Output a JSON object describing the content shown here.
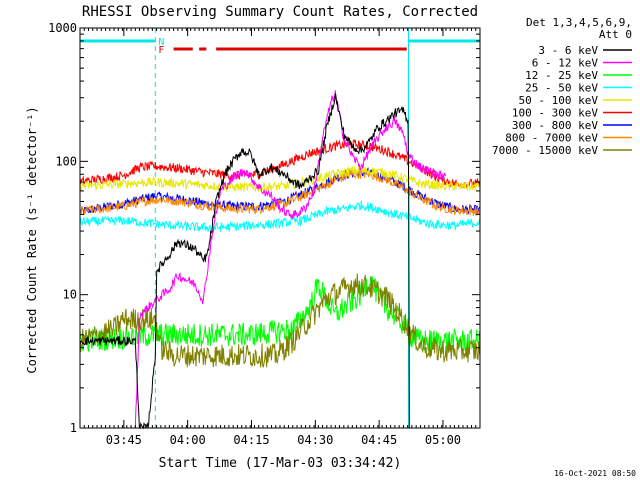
{
  "chart_data": {
    "type": "line",
    "title": "RHESSI Observing Summary Count Rates, Corrected",
    "ylabel": "Corrected Count Rate (s⁻¹ detector⁻¹)",
    "xlabel": "Start Time (17-Mar-03 03:34:42)",
    "y_scale": "log",
    "ylim": [
      1,
      1000
    ],
    "y_ticks": [
      1,
      10,
      100,
      1000
    ],
    "y_tick_labels": [
      "1",
      "10",
      "100",
      "1000"
    ],
    "x_unit": "minutes after 03:34:42",
    "xlim": [
      0,
      94
    ],
    "x_ticks": [
      10.3,
      25.3,
      40.3,
      55.3,
      70.3,
      85.3
    ],
    "x_tick_labels": [
      "03:45",
      "04:00",
      "04:15",
      "04:30",
      "04:45",
      "05:00"
    ],
    "grid": false,
    "legend_position": "right",
    "legend_header": [
      "Det 1,3,4,5,6,9,",
      "Att 0"
    ],
    "timestamp": "16-Oct-2021 08:50",
    "flags": [
      {
        "label": "N",
        "color": "#00e8e8",
        "segments": [
          [
            0,
            17.7
          ],
          [
            77.2,
            94
          ]
        ]
      },
      {
        "label": "F",
        "color": "#e00000",
        "segments": [
          [
            22,
            26.5
          ],
          [
            28,
            29.7
          ],
          [
            32,
            76.8
          ]
        ]
      }
    ],
    "vlines": [
      0,
      17.7,
      77.2,
      94
    ],
    "series": [
      {
        "name": "3 - 6 keV",
        "color": "#000000",
        "points": [
          [
            0,
            4.5
          ],
          [
            13,
            4.5
          ],
          [
            14,
            1
          ],
          [
            16,
            1
          ],
          [
            17.7,
            3.5
          ],
          [
            18,
            15
          ],
          [
            21,
            20
          ],
          [
            23,
            25
          ],
          [
            27,
            22
          ],
          [
            29,
            18
          ],
          [
            30,
            20
          ],
          [
            32,
            50
          ],
          [
            34,
            80
          ],
          [
            36,
            100
          ],
          [
            38,
            120
          ],
          [
            40,
            115
          ],
          [
            42,
            80
          ],
          [
            45,
            90
          ],
          [
            48,
            80
          ],
          [
            50,
            70
          ],
          [
            52,
            65
          ],
          [
            54,
            75
          ],
          [
            56,
            85
          ],
          [
            58,
            180
          ],
          [
            60,
            310
          ],
          [
            62,
            160
          ],
          [
            64,
            130
          ],
          [
            66,
            120
          ],
          [
            68,
            140
          ],
          [
            70,
            180
          ],
          [
            72,
            200
          ],
          [
            74,
            230
          ],
          [
            76,
            240
          ],
          [
            77.2,
            200
          ],
          [
            77.4,
            1
          ]
        ]
      },
      {
        "name": "6 - 12 keV",
        "color": "#ff00ff",
        "points": [
          [
            13,
            1
          ],
          [
            14,
            7
          ],
          [
            17.7,
            9
          ],
          [
            21,
            11
          ],
          [
            23,
            14
          ],
          [
            27,
            12
          ],
          [
            29,
            9
          ],
          [
            31,
            28
          ],
          [
            33,
            60
          ],
          [
            35,
            70
          ],
          [
            37,
            80
          ],
          [
            39,
            85
          ],
          [
            41,
            70
          ],
          [
            43,
            60
          ],
          [
            45,
            55
          ],
          [
            47,
            45
          ],
          [
            49,
            40
          ],
          [
            51,
            40
          ],
          [
            53,
            45
          ],
          [
            55,
            60
          ],
          [
            57,
            150
          ],
          [
            59,
            280
          ],
          [
            60,
            320
          ],
          [
            62,
            150
          ],
          [
            64,
            110
          ],
          [
            66,
            90
          ],
          [
            68,
            120
          ],
          [
            70,
            150
          ],
          [
            72,
            180
          ],
          [
            74,
            200
          ],
          [
            76,
            160
          ],
          [
            77.2,
            110
          ],
          [
            80,
            90
          ],
          [
            84,
            80
          ],
          [
            86,
            75
          ]
        ]
      },
      {
        "name": "12 - 25 keV",
        "color": "#00ff00",
        "points": [
          [
            0,
            4.5
          ],
          [
            17.7,
            5
          ],
          [
            25,
            5
          ],
          [
            40,
            5
          ],
          [
            50,
            5.5
          ],
          [
            54,
            8
          ],
          [
            56,
            12
          ],
          [
            58,
            9
          ],
          [
            60,
            7
          ],
          [
            62,
            8
          ],
          [
            66,
            10
          ],
          [
            68,
            13
          ],
          [
            70,
            10
          ],
          [
            72,
            8
          ],
          [
            74,
            7
          ],
          [
            76,
            6
          ],
          [
            77.2,
            5
          ],
          [
            80,
            4.5
          ],
          [
            94,
            4.5
          ]
        ]
      },
      {
        "name": "25 - 50 keV",
        "color": "#00ffff",
        "points": [
          [
            0,
            35
          ],
          [
            10,
            36
          ],
          [
            17.7,
            34
          ],
          [
            22,
            33
          ],
          [
            28,
            32
          ],
          [
            34,
            32
          ],
          [
            40,
            33
          ],
          [
            46,
            34
          ],
          [
            52,
            36
          ],
          [
            58,
            42
          ],
          [
            62,
            44
          ],
          [
            66,
            47
          ],
          [
            70,
            44
          ],
          [
            74,
            40
          ],
          [
            77.2,
            38
          ],
          [
            82,
            34
          ],
          [
            88,
            33
          ],
          [
            94,
            35
          ]
        ]
      },
      {
        "name": "50 - 100 keV",
        "color": "#e8e800",
        "points": [
          [
            0,
            65
          ],
          [
            10,
            68
          ],
          [
            17.7,
            70
          ],
          [
            24,
            68
          ],
          [
            30,
            66
          ],
          [
            36,
            64
          ],
          [
            42,
            64
          ],
          [
            48,
            65
          ],
          [
            54,
            72
          ],
          [
            60,
            80
          ],
          [
            64,
            85
          ],
          [
            68,
            85
          ],
          [
            72,
            82
          ],
          [
            76,
            75
          ],
          [
            80,
            68
          ],
          [
            86,
            65
          ],
          [
            94,
            65
          ]
        ]
      },
      {
        "name": "100 - 300 keV",
        "color": "#ff0000",
        "points": [
          [
            0,
            70
          ],
          [
            10,
            78
          ],
          [
            14,
            90
          ],
          [
            17.7,
            92
          ],
          [
            24,
            88
          ],
          [
            30,
            82
          ],
          [
            36,
            78
          ],
          [
            42,
            80
          ],
          [
            48,
            95
          ],
          [
            54,
            115
          ],
          [
            60,
            130
          ],
          [
            64,
            135
          ],
          [
            68,
            130
          ],
          [
            72,
            120
          ],
          [
            76,
            105
          ],
          [
            80,
            90
          ],
          [
            84,
            75
          ],
          [
            88,
            68
          ],
          [
            94,
            68
          ]
        ]
      },
      {
        "name": "300 - 800 keV",
        "color": "#0000ff",
        "points": [
          [
            0,
            42
          ],
          [
            10,
            48
          ],
          [
            17.7,
            55
          ],
          [
            24,
            52
          ],
          [
            30,
            48
          ],
          [
            36,
            46
          ],
          [
            42,
            46
          ],
          [
            48,
            50
          ],
          [
            54,
            60
          ],
          [
            60,
            75
          ],
          [
            64,
            82
          ],
          [
            68,
            82
          ],
          [
            72,
            75
          ],
          [
            76,
            65
          ],
          [
            80,
            55
          ],
          [
            84,
            48
          ],
          [
            88,
            44
          ],
          [
            94,
            43
          ]
        ]
      },
      {
        "name": "800 - 7000 keV",
        "color": "#ff8800",
        "points": [
          [
            0,
            42
          ],
          [
            10,
            46
          ],
          [
            17.7,
            52
          ],
          [
            24,
            50
          ],
          [
            30,
            46
          ],
          [
            36,
            44
          ],
          [
            42,
            44
          ],
          [
            48,
            48
          ],
          [
            54,
            58
          ],
          [
            60,
            72
          ],
          [
            64,
            80
          ],
          [
            68,
            80
          ],
          [
            72,
            73
          ],
          [
            76,
            63
          ],
          [
            80,
            53
          ],
          [
            84,
            46
          ],
          [
            88,
            43
          ],
          [
            94,
            42
          ]
        ]
      },
      {
        "name": "7000 - 15000 keV",
        "color": "#808000",
        "points": [
          [
            0,
            4.5
          ],
          [
            8,
            5.5
          ],
          [
            10,
            6.5
          ],
          [
            17.7,
            6.5
          ],
          [
            19,
            4
          ],
          [
            22,
            3.5
          ],
          [
            32,
            3.5
          ],
          [
            40,
            3.5
          ],
          [
            46,
            3.5
          ],
          [
            50,
            4.5
          ],
          [
            54,
            6.5
          ],
          [
            58,
            9.5
          ],
          [
            62,
            11
          ],
          [
            64,
            12
          ],
          [
            68,
            11.5
          ],
          [
            72,
            9.5
          ],
          [
            76,
            6.5
          ],
          [
            77.2,
            5.5
          ],
          [
            80,
            4.2
          ],
          [
            84,
            3.8
          ],
          [
            94,
            3.8
          ]
        ]
      }
    ]
  }
}
